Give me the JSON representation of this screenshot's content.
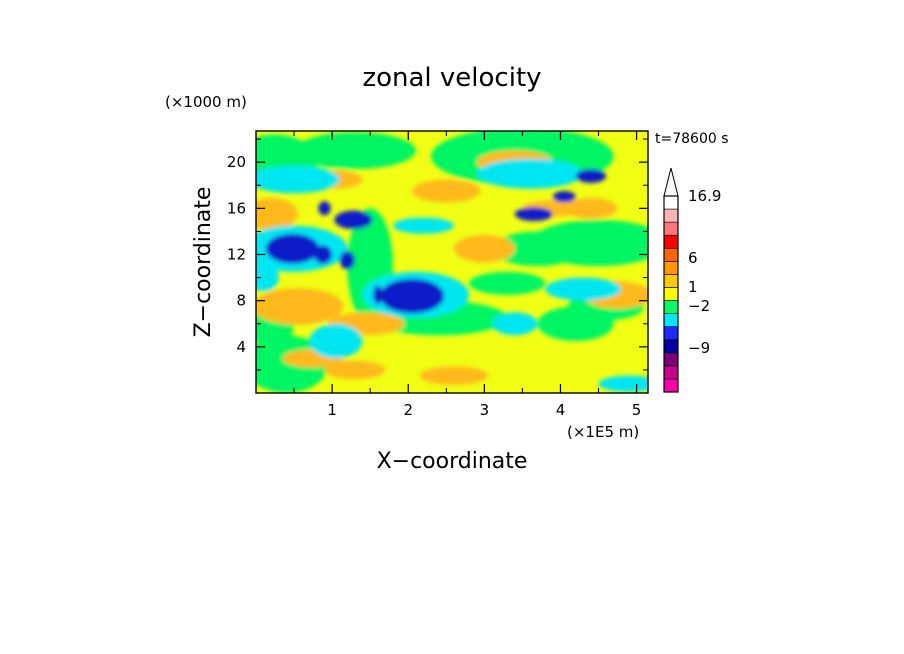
{
  "chart_data": {
    "type": "heatmap",
    "title": "zonal velocity",
    "xlabel": "X−coordinate",
    "ylabel": "Z−coordinate",
    "x_unit": "(×1E5 m)",
    "y_unit": "(×1000 m)",
    "time_label": "t=78600 s",
    "xlim": [
      0,
      5.15
    ],
    "ylim": [
      0,
      22.7
    ],
    "xticks": [
      "1",
      "2",
      "3",
      "4",
      "5"
    ],
    "yticks": [
      "4",
      "8",
      "12",
      "16",
      "20"
    ],
    "colorbar": {
      "tick_labels": [
        "16.9",
        "6",
        "1",
        "−2",
        "−9"
      ],
      "colors": [
        "#ff00a8",
        "#c8008c",
        "#780078",
        "#0000a0",
        "#1e28ff",
        "#00e6ff",
        "#00ff64",
        "#ffff00",
        "#ffc800",
        "#ff9600",
        "#ff6400",
        "#ff0000",
        "#ff7878",
        "#ffb4b4",
        "#ffffff"
      ]
    },
    "feature_colors": {
      "negative_strong": "#0a1cc8",
      "negative_weak": "#00e6f0",
      "near_zero": "#00f564",
      "positive_weak": "#f0ff14",
      "positive_moderate": "#ffb91e"
    }
  }
}
